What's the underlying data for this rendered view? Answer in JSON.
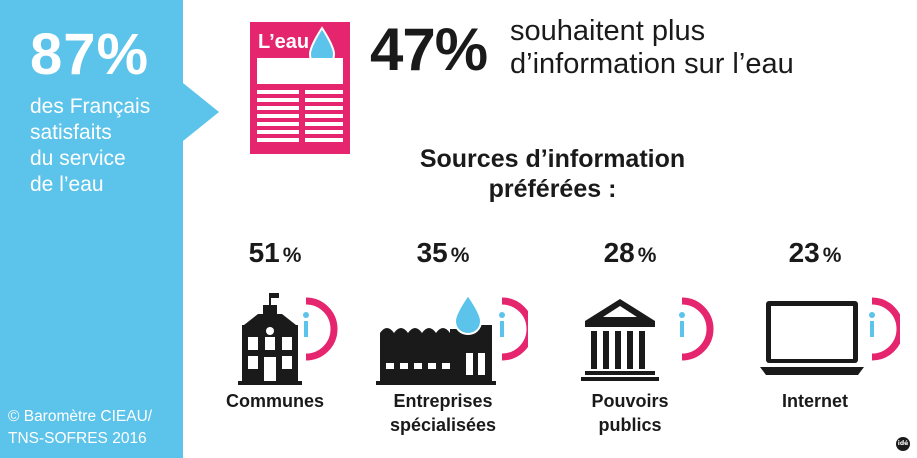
{
  "colors": {
    "accent_blue": "#5cc3ea",
    "accent_pink": "#e5256d",
    "text_dark": "#1a1a1a"
  },
  "satisfaction": {
    "value": "87",
    "unit": "%",
    "lines": [
      "des Français",
      "satisfaits",
      "du service",
      "de l’eau"
    ]
  },
  "credit": {
    "lines": [
      "© Baromètre CIEAU/",
      "TNS-SOFRES 2016"
    ]
  },
  "newspaper": {
    "title": "L’eau",
    "icon": "water-drop-icon"
  },
  "headline": {
    "value": "47",
    "unit": "%",
    "lines": [
      "souhaitent plus",
      "d’information sur l’eau"
    ]
  },
  "sources_title": {
    "lines": [
      "Sources d’information",
      "préférées :"
    ]
  },
  "sources": [
    {
      "percent": "51",
      "unit": "%",
      "label_lines": [
        "Communes"
      ],
      "icon": "town-hall-icon",
      "info_icon": "info-icon"
    },
    {
      "percent": "35",
      "unit": "%",
      "label_lines": [
        "Entreprises",
        "spécialisées"
      ],
      "icon": "factory-icon",
      "info_icon": "info-icon"
    },
    {
      "percent": "28",
      "unit": "%",
      "label_lines": [
        "Pouvoirs",
        "publics"
      ],
      "icon": "government-building-icon",
      "info_icon": "info-icon"
    },
    {
      "percent": "23",
      "unit": "%",
      "label_lines": [
        "Internet"
      ],
      "icon": "laptop-icon",
      "info_icon": "info-icon"
    }
  ],
  "logo": {
    "text": "idé"
  }
}
